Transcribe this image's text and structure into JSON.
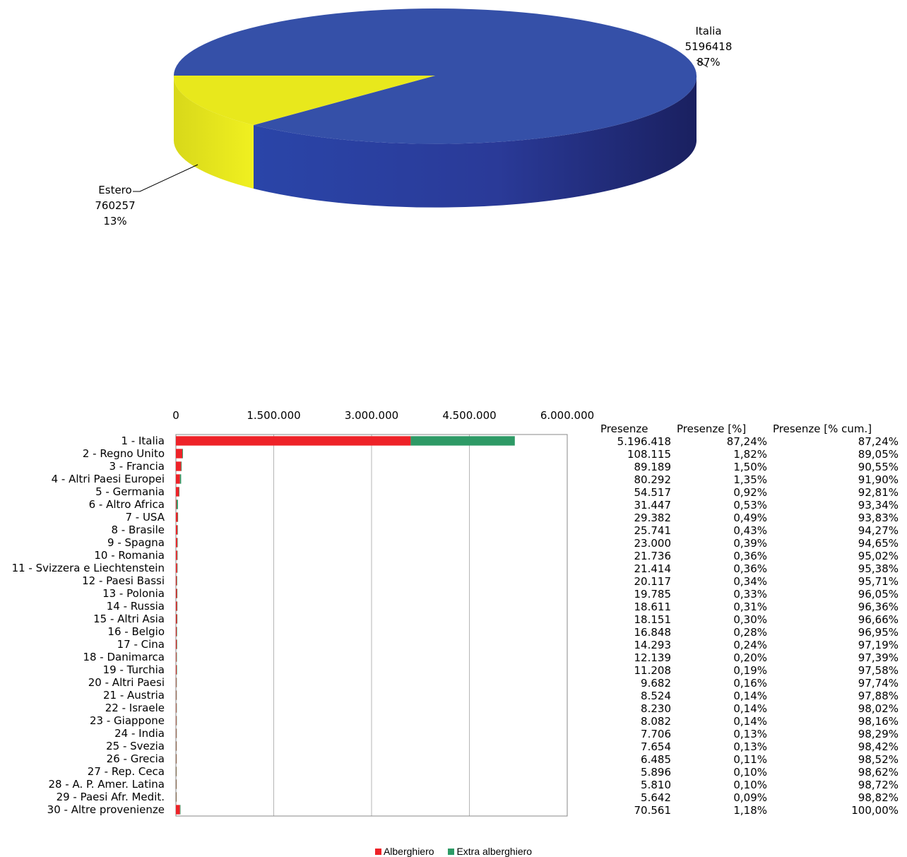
{
  "chart_data": [
    {
      "type": "pie",
      "slices": [
        {
          "name": "Italia",
          "value": 5196418,
          "percent": "87%",
          "value_label": "5196418",
          "color": "#3550a8"
        },
        {
          "name": "Estero",
          "value": 760257,
          "percent": "13%",
          "value_label": "760257",
          "color": "#e8e81c"
        }
      ]
    },
    {
      "type": "bar",
      "orientation": "horizontal",
      "stacked": true,
      "xlim": [
        0,
        6000000
      ],
      "x_ticks": [
        "0",
        "1.500.000",
        "3.000.000",
        "4.500.000",
        "6.000.000"
      ],
      "x_tick_values": [
        0,
        1500000,
        3000000,
        4500000,
        6000000
      ],
      "categories": [
        "1 - Italia",
        "2 - Regno Unito",
        "3 - Francia",
        "4 - Altri Paesi Europei",
        "5 - Germania",
        "6 - Altro Africa",
        "7 - USA",
        "8 - Brasile",
        "9 - Spagna",
        "10 - Romania",
        "11 - Svizzera e Liechtenstein",
        "12 - Paesi Bassi",
        "13 - Polonia",
        "14 - Russia",
        "15 - Altri Asia",
        "16 - Belgio",
        "17 - Cina",
        "18 - Danimarca",
        "19 - Turchia",
        "20 - Altri Paesi",
        "21 - Austria",
        "22 - Israele",
        "23 - Giappone",
        "24 - India",
        "25 - Svezia",
        "26 - Grecia",
        "27 - Rep. Ceca",
        "28 - A. P. Amer. Latina",
        "29 - Paesi Afr. Medit.",
        "30 - Altre provenienze"
      ],
      "series": [
        {
          "name": "Alberghiero",
          "color": "#ee2228",
          "values": [
            3600000,
            98000,
            80000,
            62000,
            48000,
            10000,
            27000,
            24000,
            21000,
            20000,
            19500,
            14000,
            16000,
            17000,
            16000,
            12000,
            13500,
            9000,
            10500,
            7000,
            6500,
            7500,
            7500,
            6500,
            5500,
            5500,
            4500,
            5000,
            4800,
            62000
          ]
        },
        {
          "name": "Extra alberghiero",
          "color": "#2e9a66",
          "values": [
            1596418,
            10115,
            9189,
            18292,
            6517,
            21447,
            2382,
            1741,
            2000,
            1736,
            1914,
            6117,
            3785,
            1611,
            2151,
            4848,
            793,
            3139,
            708,
            2682,
            2024,
            730,
            582,
            1206,
            2154,
            985,
            1396,
            810,
            842,
            8561
          ]
        }
      ],
      "grid": true
    }
  ],
  "table": {
    "headers": [
      "Presenze",
      "Presenze [%]",
      "Presenze [% cum.]"
    ],
    "presenze": [
      "5.196.418",
      "108.115",
      "89.189",
      "80.292",
      "54.517",
      "31.447",
      "29.382",
      "25.741",
      "23.000",
      "21.736",
      "21.414",
      "20.117",
      "19.785",
      "18.611",
      "18.151",
      "16.848",
      "14.293",
      "12.139",
      "11.208",
      "9.682",
      "8.524",
      "8.230",
      "8.082",
      "7.706",
      "7.654",
      "6.485",
      "5.896",
      "5.810",
      "5.642",
      "70.561"
    ],
    "percent": [
      "87,24%",
      "1,82%",
      "1,50%",
      "1,35%",
      "0,92%",
      "0,53%",
      "0,49%",
      "0,43%",
      "0,39%",
      "0,36%",
      "0,36%",
      "0,34%",
      "0,33%",
      "0,31%",
      "0,30%",
      "0,28%",
      "0,24%",
      "0,20%",
      "0,19%",
      "0,16%",
      "0,14%",
      "0,14%",
      "0,14%",
      "0,13%",
      "0,13%",
      "0,11%",
      "0,10%",
      "0,10%",
      "0,09%",
      "1,18%"
    ],
    "cumulative": [
      "87,24%",
      "89,05%",
      "90,55%",
      "91,90%",
      "92,81%",
      "93,34%",
      "93,83%",
      "94,27%",
      "94,65%",
      "95,02%",
      "95,38%",
      "95,71%",
      "96,05%",
      "96,36%",
      "96,66%",
      "96,95%",
      "97,19%",
      "97,39%",
      "97,58%",
      "97,74%",
      "97,88%",
      "98,02%",
      "98,16%",
      "98,29%",
      "98,42%",
      "98,52%",
      "98,62%",
      "98,72%",
      "98,82%",
      "100,00%"
    ]
  }
}
